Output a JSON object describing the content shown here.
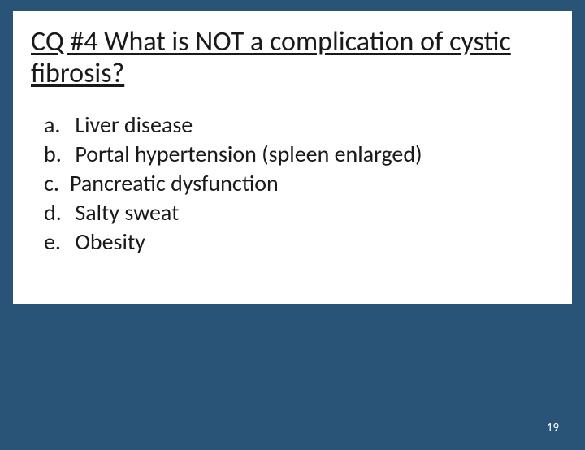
{
  "slide": {
    "background_color": "#2a5378",
    "card_background": "#ffffff",
    "text_color": "#1a1a1a",
    "question": "CQ #4  What is NOT a complication of cystic fibrosis?",
    "question_fontsize": 34,
    "option_fontsize": 28,
    "options": [
      {
        "letter": "a.",
        "text": " Liver disease"
      },
      {
        "letter": "b.",
        "text": " Portal hypertension (spleen enlarged)"
      },
      {
        "letter": "c.",
        "text": "Pancreatic dysfunction"
      },
      {
        "letter": "d.",
        "text": " Salty sweat"
      },
      {
        "letter": "e.",
        "text": " Obesity"
      }
    ],
    "page_number": "19"
  }
}
